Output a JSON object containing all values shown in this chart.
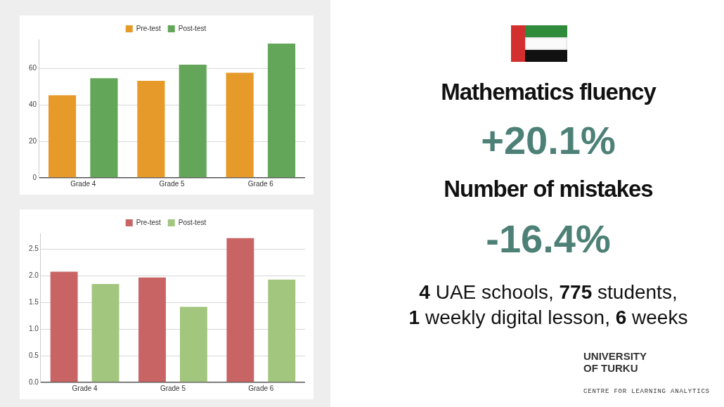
{
  "chart_data": [
    {
      "type": "bar",
      "categories": [
        "Grade 4",
        "Grade 5",
        "Grade 6"
      ],
      "series": [
        {
          "name": "Pre-test",
          "color": "#e69a2a",
          "values": [
            45.3,
            53.2,
            57.7
          ]
        },
        {
          "name": "Post-test",
          "color": "#63a65a",
          "values": [
            54.7,
            62.1,
            73.7
          ]
        }
      ],
      "ylim": [
        0,
        76
      ],
      "yticks": [
        0,
        20,
        40,
        60
      ],
      "grid": "y",
      "legend": "top"
    },
    {
      "type": "bar",
      "categories": [
        "Grade 4",
        "Grade 5",
        "Grade 6"
      ],
      "series": [
        {
          "name": "Pre-test",
          "color": "#c86464",
          "values": [
            2.08,
            1.97,
            2.71
          ]
        },
        {
          "name": "Post-test",
          "color": "#a3c67f",
          "values": [
            1.85,
            1.42,
            1.93
          ]
        }
      ],
      "ylim": [
        0,
        2.8
      ],
      "yticks": [
        {
          "value": 0,
          "label": "0.0"
        },
        {
          "value": 0.5,
          "label": "0.5"
        },
        {
          "value": 1,
          "label": "1.0"
        },
        {
          "value": 1.5,
          "label": "1.5"
        },
        {
          "value": 2,
          "label": "2.0"
        },
        {
          "value": 2.5,
          "label": "2.5"
        }
      ],
      "grid": "y",
      "legend": "top"
    },
    {
      "type": "other",
      "annotations": [
        "Mathematics fluency",
        "+20.1%",
        "Number of mistakes",
        "-16.4%",
        "4 UAE schools, 775 students,",
        "1 weekly digital lesson, 6 weeks",
        "UNIVERSITY OF TURKU",
        "CENTRE FOR LEARNING ANALYTICS"
      ]
    }
  ]
}
